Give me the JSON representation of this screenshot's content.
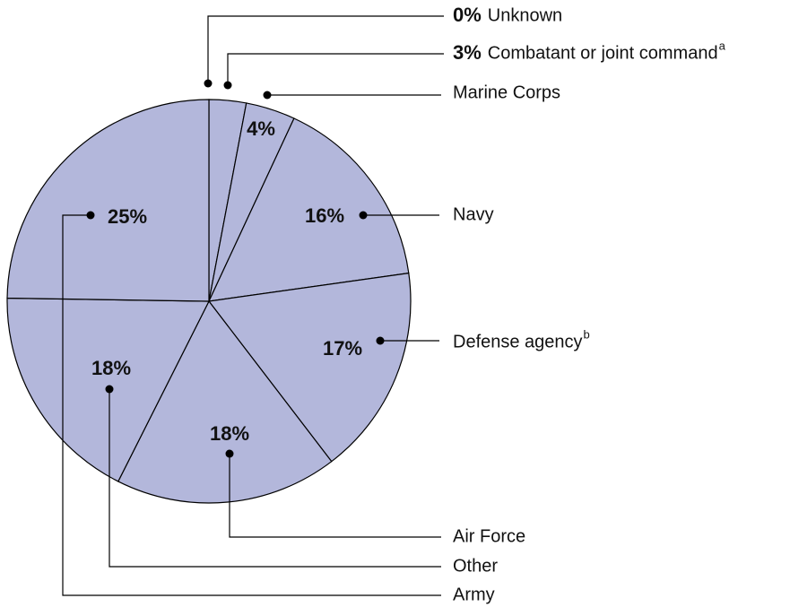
{
  "chart_data": {
    "type": "pie",
    "categories": [
      "Unknown",
      "Combatant or joint command",
      "Marine Corps",
      "Navy",
      "Defense agency",
      "Air Force",
      "Other",
      "Army"
    ],
    "values": [
      0,
      3,
      4,
      16,
      17,
      18,
      18,
      25
    ],
    "value_labels": [
      "0%",
      "3%",
      "4%",
      "16%",
      "17%",
      "18%",
      "18%",
      "25%"
    ],
    "superscripts": [
      {
        "index": 1,
        "text": "a"
      },
      {
        "index": 4,
        "text": "b"
      }
    ],
    "color": "#b3b7db"
  }
}
